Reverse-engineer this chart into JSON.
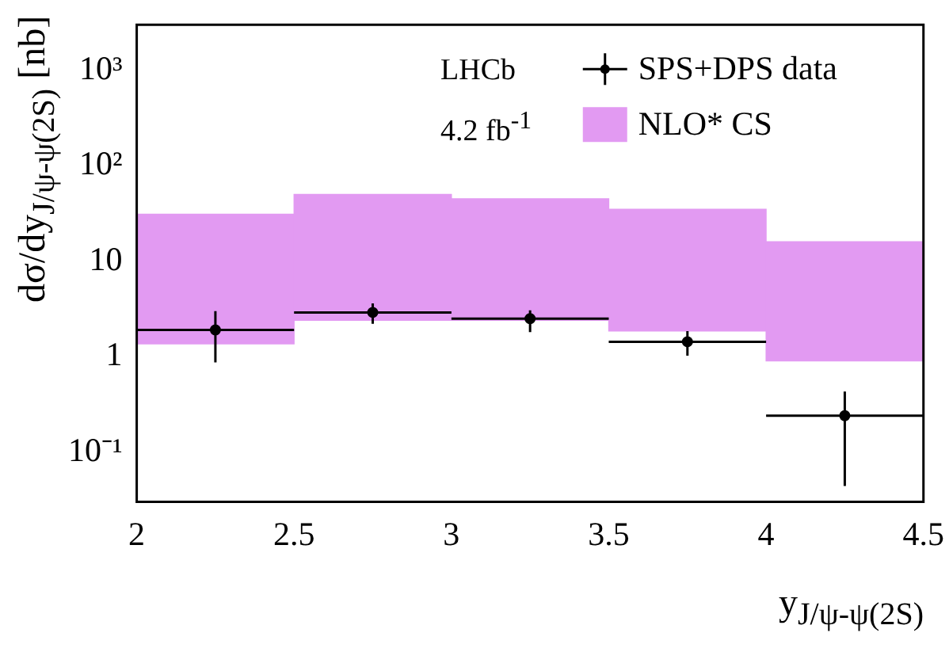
{
  "chart_data": {
    "type": "scatter",
    "xlabel": "y$_{J/ψ-ψ(2S)}$",
    "ylabel": "dσ/dy$_{J/ψ-ψ(2S)}$ [nb]",
    "annotations": [
      "LHCb",
      "4.2 fb$^{-1}$"
    ],
    "series": [
      {
        "type": "bar",
        "name": "NLO* CS",
        "color": "#e29af2",
        "x": [
          2.25,
          2.75,
          3.25,
          3.75,
          4.25
        ],
        "base": [
          1.36,
          2.4,
          2.4,
          1.85,
          0.9
        ],
        "values": [
          29.64,
          47.6,
          42.6,
          33.15,
          15.1
        ]
      },
      {
        "name": "SPS+DPS data",
        "color": "#000000",
        "x": [
          2.25,
          2.75,
          3.25,
          3.75,
          4.25
        ],
        "values": [
          1.9,
          2.9,
          2.5,
          1.43,
          0.24
        ],
        "xerrors": [
          0.25,
          0.25,
          0.25,
          0.25,
          0.25
        ],
        "errors": [
          [
            0.87,
            3.0
          ],
          [
            2.2,
            3.6
          ],
          [
            1.8,
            3.05
          ],
          [
            1.02,
            1.85
          ],
          [
            0.044,
            0.43
          ]
        ]
      }
    ],
    "xlim": [
      2,
      4.5
    ],
    "xticks": [
      2,
      2.5,
      3,
      3.5,
      4,
      4.5
    ],
    "log": "y",
    "ylim": [
      0.03,
      3000
    ],
    "yticks": [
      {
        "value": 0.1,
        "label": "10⁻¹"
      },
      1,
      10,
      {
        "value": 100,
        "label": "10²"
      },
      {
        "value": 1000,
        "label": "10³"
      }
    ],
    "grid": false,
    "legend": "top right",
    "marker": "circle"
  }
}
